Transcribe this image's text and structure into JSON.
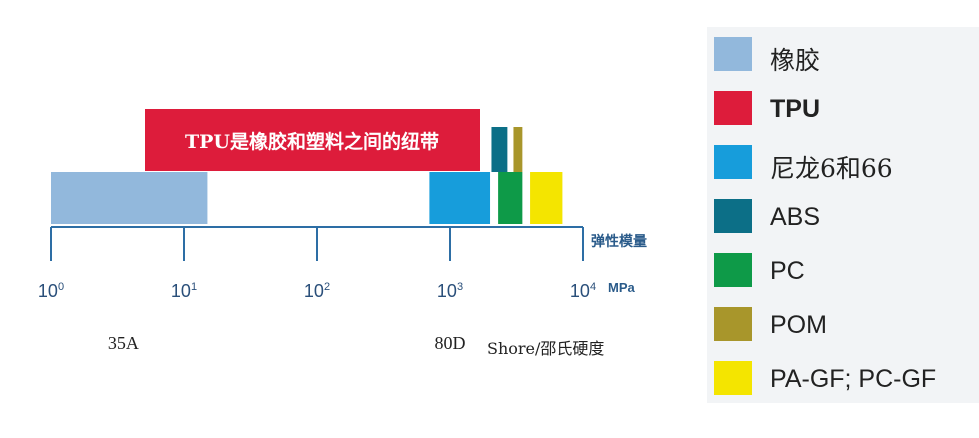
{
  "chart_data": {
    "type": "bar",
    "scale": "log10",
    "xlim": [
      1,
      10000
    ],
    "x_ticks": [
      {
        "base": "10",
        "exp": "0",
        "value": 1
      },
      {
        "base": "10",
        "exp": "1",
        "value": 10
      },
      {
        "base": "10",
        "exp": "2",
        "value": 100
      },
      {
        "base": "10",
        "exp": "3",
        "value": 1000
      },
      {
        "base": "10",
        "exp": "4",
        "value": 10000
      }
    ],
    "xlabel": "弹性模量",
    "unit": "MPa",
    "banner": "TPU是橡胶和塑料之间的纽带",
    "series": [
      {
        "name": "橡胶",
        "color": "#92b8dc",
        "range": [
          1,
          15
        ],
        "row": "lower"
      },
      {
        "name": "TPU",
        "color": "#dd1c3b",
        "range": [
          5,
          800
        ],
        "row": "upper"
      },
      {
        "name": "尼龙6和66",
        "color": "#179ddb",
        "range": [
          700,
          2000
        ],
        "row": "lower"
      },
      {
        "name": "ABS",
        "color": "#0c6f87",
        "range": [
          2050,
          2700
        ],
        "row": "upper"
      },
      {
        "name": "PC",
        "color": "#0e9a48",
        "range": [
          2300,
          3500
        ],
        "row": "lower"
      },
      {
        "name": "POM",
        "color": "#a8962b",
        "range": [
          3000,
          3500
        ],
        "row": "upper"
      },
      {
        "name": "PA-GF; PC-GF",
        "color": "#f4e500",
        "range": [
          4000,
          7000
        ],
        "row": "lower"
      }
    ],
    "hardness": {
      "labels": [
        {
          "text": "35A",
          "at": 3.5
        },
        {
          "text": "80D",
          "at": 1000
        }
      ],
      "title": "Shore/邵氏硬度"
    }
  },
  "legend": [
    {
      "label": "橡胶",
      "color": "#92b8dc",
      "style": "cjk"
    },
    {
      "label": "TPU",
      "color": "#dd1c3b",
      "style": "bold"
    },
    {
      "label": "尼龙6和66",
      "color": "#179ddb",
      "style": "cjk"
    },
    {
      "label": "ABS",
      "color": "#0c6f87",
      "style": ""
    },
    {
      "label": "PC",
      "color": "#0e9a48",
      "style": ""
    },
    {
      "label": "POM",
      "color": "#a8962b",
      "style": ""
    },
    {
      "label": "PA-GF; PC-GF",
      "color": "#f4e500",
      "style": ""
    }
  ]
}
